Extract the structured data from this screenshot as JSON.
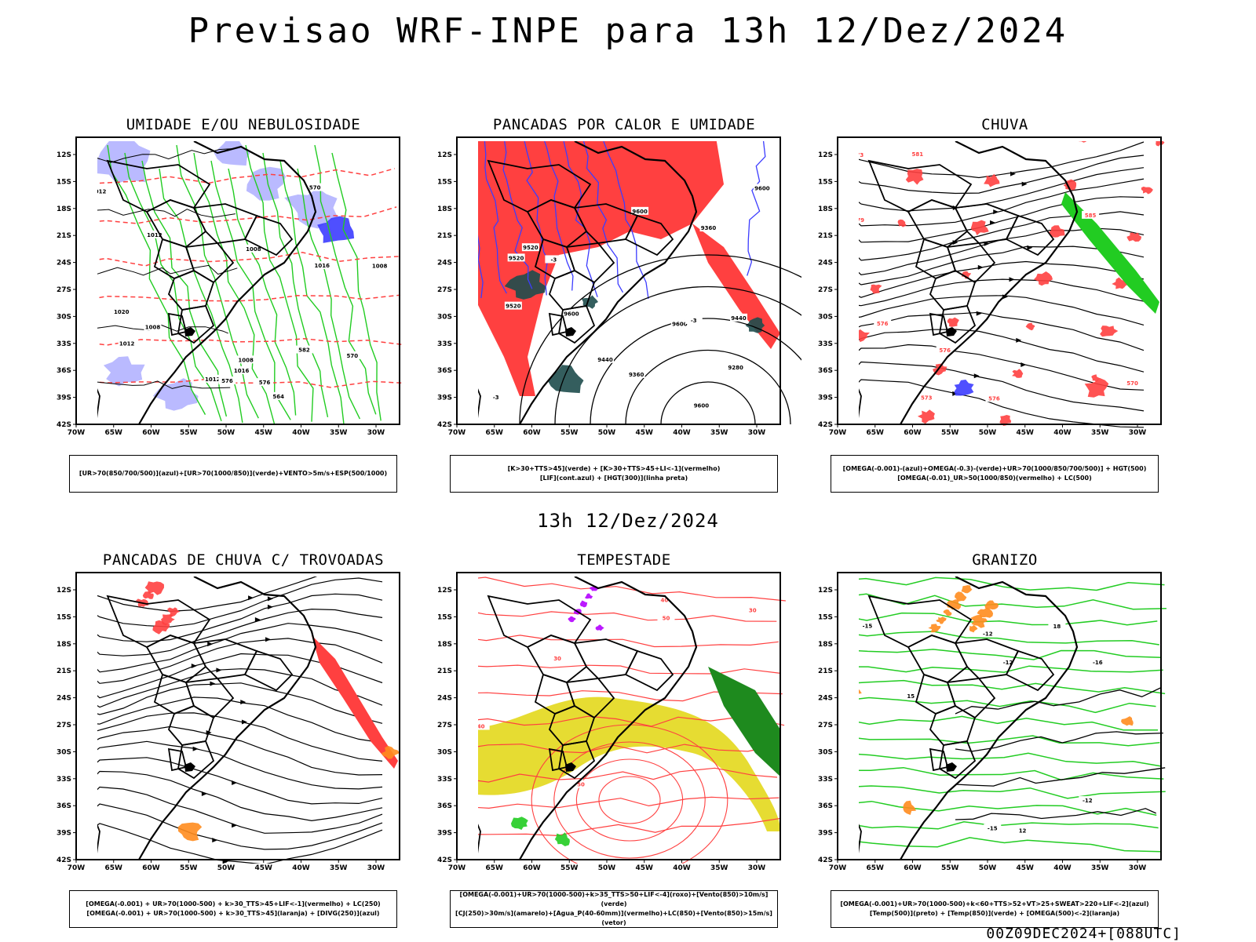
{
  "title": "Previsao WRF-INPE  para 13h 12/Dez/2024",
  "mid_title": "13h 12/Dez/2024",
  "footer": "00Z09DEC2024+[088UTC]",
  "axes": {
    "lat_labels": [
      "12S",
      "15S",
      "18S",
      "21S",
      "24S",
      "27S",
      "30S",
      "33S",
      "36S",
      "39S",
      "42S"
    ],
    "lon_labels": [
      "70W",
      "65W",
      "60W",
      "55W",
      "50W",
      "45W",
      "40W",
      "35W",
      "30W"
    ]
  },
  "colors": {
    "humid_blue": "#b3b3ff",
    "deep_blue": "#3c3cff",
    "green": "#22cc22",
    "red": "#ff4040",
    "dark_teal": "#1e4d4d",
    "yellow": "#e6dc32",
    "orange": "#ff8c1e",
    "purple": "#b400ff",
    "black": "#000000"
  },
  "panels": [
    {
      "title": "UMIDADE E/OU NEBULOSIDADE",
      "legend": [
        "[UR>70(850/700/500)](azul)+[UR>70(1000/850)](verde)+VENTO>5m/s+ESP(500/1000)"
      ],
      "contour_labels": [
        "1012",
        "1008",
        "1008",
        "1012",
        "1008",
        "1012",
        "1016",
        "1020",
        "1016",
        "1012",
        "1008",
        "570",
        "576",
        "564",
        "570",
        "576",
        "582"
      ]
    },
    {
      "title": "PANCADAS POR CALOR E UMIDADE",
      "legend": [
        "[K>30+TTS>45](verde) + [K>30+TTS>45+LI<-1](vermelho)",
        "[LIF](cont.azul) + [HGT(300)](linha preta)"
      ],
      "contour_labels": [
        "9600",
        "9600",
        "9600",
        "9520",
        "9520",
        "9440",
        "9360",
        "9280",
        "9360",
        "9440",
        "9520",
        "9600",
        "9600",
        "-3",
        "-3",
        "-3"
      ]
    },
    {
      "title": "CHUVA",
      "legend": [
        "[OMEGA(-0.001)-(azul)+OMEGA(-0.3)-(verde)+UR>70(1000/850/700/500)] + HGT(500)",
        "[OMEGA(-0.01)_UR>50(1000/850)(vermelho) + LC(500)"
      ],
      "contour_labels": [
        "585",
        "576",
        "573",
        "576",
        "579",
        "570",
        "573",
        "576",
        "581"
      ]
    },
    {
      "title": "PANCADAS DE CHUVA C/ TROVOADAS",
      "legend": [
        "[OMEGA(-0.001) + UR>70(1000-500) + k>30_TTS>45+LIF<-1](vermelho) + LC(250)",
        "[OMEGA(-0.001) + UR>70(1000-500) + k>30_TTS>45](laranja) + [DIVG(250)](azul)"
      ],
      "contour_labels": []
    },
    {
      "title": "TEMPESTADE",
      "legend": [
        "[OMEGA(-0.001)+UR>70(1000-500)+k>35_TTS>50+LIF<-4](roxo)+[Vento(850)>10m/s](verde)",
        "[CJ(250)>30m/s](amarelo)+[Agua_P(40-60mm)](vermelho)+LC(850)+[Vento(850)>15m/s](vetor)"
      ],
      "contour_labels": [
        "30",
        "40",
        "50",
        "50",
        "40",
        "30"
      ]
    },
    {
      "title": "GRANIZO",
      "legend": [
        "[OMEGA(-0.001)+UR>70(1000-500)+k<60+TTS>52+VT>25+SWEAT>220+LIF<-2](azul)",
        "[Temp(500)](preto) + [Temp(850)](verde) + [OMEGA(500)<-2](laranja)"
      ],
      "contour_labels": [
        "-12",
        "-12",
        "-15",
        "-16",
        "-15",
        "-12",
        "12",
        "18",
        "15"
      ]
    }
  ]
}
